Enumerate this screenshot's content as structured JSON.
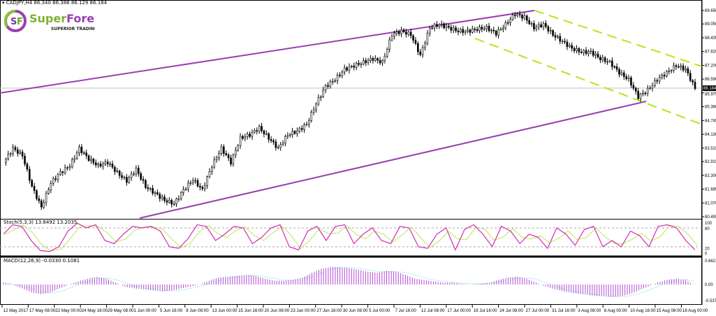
{
  "header": {
    "symbol": "CADJPY,H4",
    "ohlc": "86.340 86.386 86.129 86.184"
  },
  "logo": {
    "brand": "SuperForex",
    "tagline": "SUPERIOR TRADING",
    "mark": "SF"
  },
  "colors": {
    "candle": "#000000",
    "channel": "#9b3fb0",
    "dashed_channel": "#b5e61d",
    "stoch_main": "#d62bb3",
    "stoch_signal": "#a6e22e",
    "macd_hist": "#b54bd6",
    "macd_signal": "#3fd7c8",
    "price_label_bg": "#000000"
  },
  "chart_data": [
    {
      "type": "candlestick",
      "title": "CADJPY,H4",
      "current_price": "86.184",
      "y_ticks": [
        "89.650",
        "89.050",
        "88.435",
        "87.820",
        "87.200",
        "86.590",
        "85.975",
        "85.360",
        "84.745",
        "84.130",
        "83.515",
        "82.915",
        "82.300",
        "81.685",
        "81.070",
        "80.455"
      ],
      "ylim": [
        80.455,
        89.65
      ],
      "x_ticks": [
        "12 May 2017",
        "17 May 08:00",
        "22 May 00:00",
        "24 May 16:00",
        "29 May 08:00",
        "1 Jun 00:00",
        "5 Jun 16:00",
        "8 Jun 08:00",
        "13 Jun 00:00",
        "15 Jun 16:00",
        "20 Jun 08:00",
        "23 Jun 00:00",
        "27 Jun 16:00",
        "30 Jun 08:00",
        "5 Jul 00:00",
        "7 Jul 16:00",
        "12 Jul 08:00",
        "17 Jul 00:00",
        "19 Jul 16:00",
        "24 Jul 08:00",
        "27 Jul 00:00",
        "31 Jul 16:00",
        "3 Aug 08:00",
        "8 Aug 00:00",
        "10 Aug 16:00",
        "15 Aug 08:00",
        "18 Aug 00:00"
      ],
      "close_path": [
        82.88,
        83.5,
        83.19,
        81.8,
        80.88,
        81.96,
        82.42,
        82.73,
        83.5,
        83.03,
        82.73,
        82.88,
        82.42,
        82.05,
        82.57,
        81.8,
        81.5,
        81.19,
        81.03,
        81.65,
        82.11,
        81.65,
        82.73,
        83.5,
        82.88,
        83.96,
        84.11,
        84.42,
        83.96,
        83.5,
        84.11,
        84.27,
        84.57,
        85.5,
        86.27,
        86.57,
        87.03,
        87.19,
        87.34,
        87.5,
        87.34,
        88.57,
        88.73,
        88.57,
        87.65,
        88.88,
        89.03,
        88.88,
        88.73,
        88.73,
        88.82,
        88.88,
        88.63,
        89.03,
        89.5,
        89.34,
        88.88,
        89.03,
        88.57,
        88.27,
        87.96,
        87.8,
        87.8,
        87.5,
        87.34,
        86.88,
        86.57,
        85.8,
        86.11,
        86.57,
        86.88,
        87.19,
        87.03,
        86.18
      ]
    },
    {
      "type": "line",
      "title": "Stoch(5,3,3) 13.8492 13.2035",
      "y_ticks": [
        "100",
        "80",
        "20",
        "0"
      ],
      "ylim": [
        0,
        100
      ],
      "levels": [
        80,
        20
      ],
      "main": [
        60,
        90,
        85,
        40,
        8,
        5,
        20,
        70,
        95,
        80,
        90,
        40,
        30,
        60,
        85,
        80,
        85,
        70,
        20,
        15,
        45,
        90,
        85,
        40,
        60,
        85,
        80,
        30,
        50,
        80,
        90,
        20,
        10,
        70,
        85,
        40,
        85,
        90,
        30,
        60,
        80,
        40,
        30,
        85,
        80,
        20,
        15,
        60,
        80,
        10,
        75,
        90,
        60,
        20,
        85,
        70,
        30,
        60,
        50,
        15,
        80,
        60,
        25,
        75,
        85,
        20,
        40,
        20,
        70,
        55,
        20,
        85,
        90,
        80,
        40,
        10
      ],
      "signal_lag": 1
    },
    {
      "type": "bar",
      "title": "MACD(12,26,9) -0.0330 0.1081",
      "y_ticks": [
        "0.6621",
        "0.00",
        "-0.5372"
      ],
      "ylim": [
        -0.5372,
        0.6621
      ],
      "histogram": [
        0.05,
        0.0,
        -0.1,
        -0.2,
        -0.25,
        -0.2,
        -0.1,
        0.0,
        0.08,
        0.15,
        0.2,
        0.15,
        0.05,
        -0.05,
        -0.1,
        -0.12,
        -0.15,
        -0.18,
        -0.15,
        -0.1,
        -0.05,
        0.0,
        0.1,
        0.18,
        0.2,
        0.22,
        0.25,
        0.22,
        0.15,
        0.1,
        0.1,
        0.12,
        0.18,
        0.3,
        0.4,
        0.45,
        0.45,
        0.42,
        0.38,
        0.33,
        0.3,
        0.35,
        0.33,
        0.25,
        0.15,
        0.12,
        0.08,
        0.05,
        0.05,
        0.02,
        0.0,
        0.02,
        0.05,
        0.12,
        0.18,
        0.2,
        0.15,
        0.05,
        -0.05,
        -0.12,
        -0.18,
        -0.22,
        -0.25,
        -0.28,
        -0.3,
        -0.32,
        -0.3,
        -0.25,
        -0.15,
        -0.05,
        0.05,
        0.12,
        0.15,
        0.12,
        -0.03
      ]
    }
  ]
}
